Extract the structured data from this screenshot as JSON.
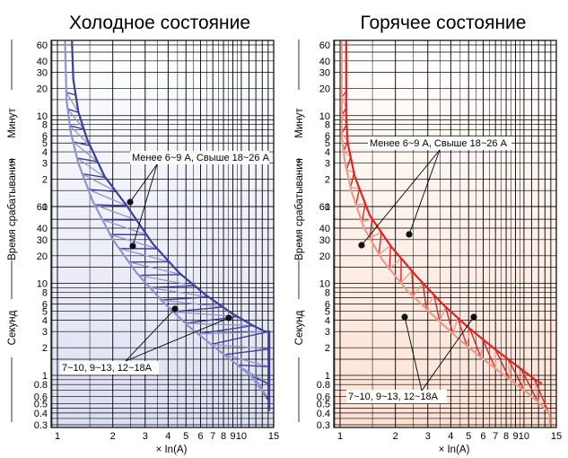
{
  "chart_data": [
    {
      "type": "line",
      "title": "Холодное состояние",
      "xlabel": "× In(A)",
      "x_ticks": [
        "1",
        "2",
        "3",
        "4",
        "5",
        "6",
        "7",
        "8",
        "9",
        "10",
        "15"
      ],
      "y_ticks_minutes": [
        "1",
        "2",
        "3",
        "4",
        "5",
        "6",
        "8",
        "10",
        "20",
        "30",
        "40",
        "60"
      ],
      "y_ticks_seconds": [
        "0.3",
        "0.4",
        "0.5",
        "0.6",
        "0.8",
        "1",
        "2",
        "3",
        "4",
        "5",
        "6",
        "8",
        "10",
        "20",
        "30",
        "40",
        "60"
      ],
      "ylabel": "Время срабатывания",
      "ylabel_minutes": "Минут",
      "ylabel_seconds": "Секунд",
      "annotations": [
        "Менее 6~9 А, Свыше 18~26 А",
        "7~10, 9~13, 12~18A"
      ],
      "colors": {
        "dark": "#3b3f9e",
        "light": "#8f93cf",
        "bg_top": "#ffffff",
        "bg_bottom": "#dcdff2"
      },
      "series": [
        {
          "x": [
            1.2,
            1.22,
            1.3,
            1.45,
            1.8,
            2.4,
            3.3,
            4.6,
            6.4,
            8.8,
            11.5,
            13.5,
            14.2,
            14.2,
            14.2
          ],
          "y": [
            3960,
            1500,
            660,
            330,
            130,
            60,
            27,
            13,
            7.5,
            4.8,
            3.5,
            3.0,
            3.0,
            1.0,
            0.42
          ]
        },
        {
          "x": [
            1.1,
            1.12,
            1.18,
            1.3,
            1.55,
            2.0,
            2.7,
            3.7,
            5.1,
            7.0,
            9.5,
            12.0,
            13.6,
            13.6
          ],
          "y": [
            3960,
            900,
            400,
            180,
            70,
            30,
            13,
            6.5,
            3.5,
            2.1,
            1.3,
            0.9,
            0.62,
            0.62
          ]
        }
      ]
    },
    {
      "type": "line",
      "title": "Горячее состояние",
      "xlabel": "× In(A)",
      "x_ticks": [
        "1",
        "2",
        "3",
        "4",
        "5",
        "6",
        "7",
        "8",
        "9",
        "10",
        "15"
      ],
      "y_ticks_minutes": [
        "1",
        "2",
        "3",
        "4",
        "5",
        "6",
        "8",
        "10",
        "20",
        "30",
        "40",
        "60"
      ],
      "y_ticks_seconds": [
        "0.3",
        "0.4",
        "0.5",
        "0.6",
        "0.8",
        "1",
        "2",
        "3",
        "4",
        "5",
        "6",
        "8",
        "10",
        "20",
        "30",
        "40",
        "60"
      ],
      "ylabel": "Время срабатывания",
      "ylabel_minutes": "Минут",
      "ylabel_seconds": "Секунд",
      "annotations": [
        "Менее 6~9 А, Свыше 18~26 А",
        "7~10, 9~13, 12~18A"
      ],
      "colors": {
        "dark": "#e82020",
        "light": "#f29a88",
        "bg_top": "#ffffff",
        "bg_bottom": "#fde1d3"
      },
      "series": [
        {
          "x": [
            1.08,
            1.08,
            1.1,
            1.2,
            1.45,
            1.9,
            2.6,
            3.6,
            5.0,
            6.8,
            9.0,
            11.5,
            12.5,
            12.5
          ],
          "y": [
            3960,
            600,
            300,
            130,
            55,
            25,
            12,
            6.0,
            3.3,
            2.0,
            1.3,
            0.9,
            0.82,
            0.82
          ]
        },
        {
          "x": [
            1.02,
            1.02,
            1.06,
            1.15,
            1.35,
            1.7,
            2.3,
            3.2,
            4.4,
            6.0,
            8.1,
            10.5,
            12.5,
            13.8,
            13.8
          ],
          "y": [
            3960,
            360,
            190,
            90,
            40,
            18,
            8.5,
            4.5,
            2.5,
            1.5,
            0.95,
            0.65,
            0.48,
            0.4,
            0.3
          ]
        }
      ]
    }
  ]
}
